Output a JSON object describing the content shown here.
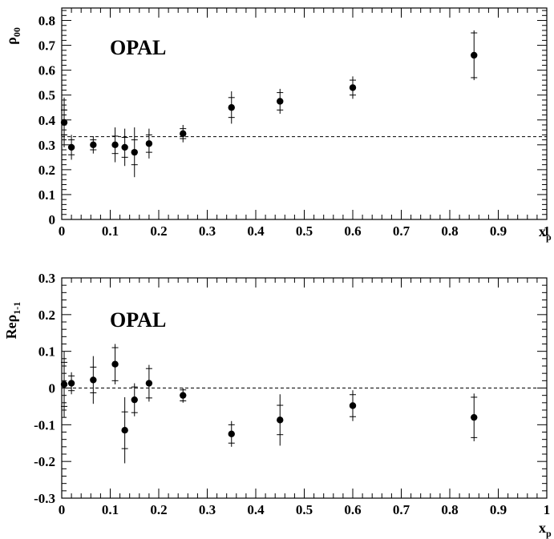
{
  "chart_data": [
    {
      "type": "scatter",
      "label": "OPAL",
      "xlabel": "x",
      "xlabel_sub": "p",
      "ylabel": "ρ",
      "ylabel_sub": "00",
      "xlim": [
        0,
        1
      ],
      "ylim": [
        0,
        0.85
      ],
      "xticks": [
        "0",
        "0.1",
        "0.2",
        "0.3",
        "0.4",
        "0.5",
        "0.6",
        "0.7",
        "0.8",
        "0.9",
        "1"
      ],
      "yticks": [
        "0",
        "0.1",
        "0.2",
        "0.3",
        "0.4",
        "0.5",
        "0.6",
        "0.7",
        "0.8"
      ],
      "reference_line": 0.333,
      "series": [
        {
          "points": [
            {
              "x": 0.005,
              "y": 0.39,
              "stat": 0.05,
              "tot": 0.1
            },
            {
              "x": 0.02,
              "y": 0.29,
              "stat": 0.03,
              "tot": 0.05
            },
            {
              "x": 0.065,
              "y": 0.3,
              "stat": 0.02,
              "tot": 0.035
            },
            {
              "x": 0.11,
              "y": 0.3,
              "stat": 0.035,
              "tot": 0.07
            },
            {
              "x": 0.13,
              "y": 0.29,
              "stat": 0.04,
              "tot": 0.075
            },
            {
              "x": 0.15,
              "y": 0.27,
              "stat": 0.05,
              "tot": 0.1
            },
            {
              "x": 0.18,
              "y": 0.305,
              "stat": 0.035,
              "tot": 0.06
            },
            {
              "x": 0.25,
              "y": 0.345,
              "stat": 0.02,
              "tot": 0.035
            },
            {
              "x": 0.35,
              "y": 0.45,
              "stat": 0.04,
              "tot": 0.065
            },
            {
              "x": 0.45,
              "y": 0.475,
              "stat": 0.035,
              "tot": 0.05
            },
            {
              "x": 0.6,
              "y": 0.53,
              "stat": 0.03,
              "tot": 0.045
            },
            {
              "x": 0.85,
              "y": 0.66,
              "stat": 0.09,
              "tot": 0.1
            }
          ]
        }
      ]
    },
    {
      "type": "scatter",
      "label": "OPAL",
      "xlabel": "x",
      "xlabel_sub": "p",
      "ylabel": "Reρ",
      "ylabel_sub": "1-1",
      "xlim": [
        0,
        1
      ],
      "ylim": [
        -0.3,
        0.3
      ],
      "xticks": [
        "0",
        "0.1",
        "0.2",
        "0.3",
        "0.4",
        "0.5",
        "0.6",
        "0.7",
        "0.8",
        "0.9",
        "1"
      ],
      "yticks": [
        "-0.3",
        "-0.2",
        "-0.1",
        "0",
        "0.1",
        "0.2",
        "0.3"
      ],
      "reference_line": 0,
      "series": [
        {
          "points": [
            {
              "x": 0.005,
              "y": 0.01,
              "stat": 0.06,
              "tot": 0.09
            },
            {
              "x": 0.02,
              "y": 0.013,
              "stat": 0.02,
              "tot": 0.03
            },
            {
              "x": 0.065,
              "y": 0.022,
              "stat": 0.035,
              "tot": 0.065
            },
            {
              "x": 0.11,
              "y": 0.065,
              "stat": 0.045,
              "tot": 0.055
            },
            {
              "x": 0.13,
              "y": -0.115,
              "stat": 0.05,
              "tot": 0.09
            },
            {
              "x": 0.15,
              "y": -0.032,
              "stat": 0.035,
              "tot": 0.045
            },
            {
              "x": 0.18,
              "y": 0.013,
              "stat": 0.04,
              "tot": 0.05
            },
            {
              "x": 0.25,
              "y": -0.02,
              "stat": 0.015,
              "tot": 0.02
            },
            {
              "x": 0.35,
              "y": -0.125,
              "stat": 0.025,
              "tot": 0.035
            },
            {
              "x": 0.45,
              "y": -0.087,
              "stat": 0.04,
              "tot": 0.07
            },
            {
              "x": 0.6,
              "y": -0.048,
              "stat": 0.03,
              "tot": 0.042
            },
            {
              "x": 0.85,
              "y": -0.08,
              "stat": 0.055,
              "tot": 0.065
            }
          ]
        }
      ]
    }
  ]
}
